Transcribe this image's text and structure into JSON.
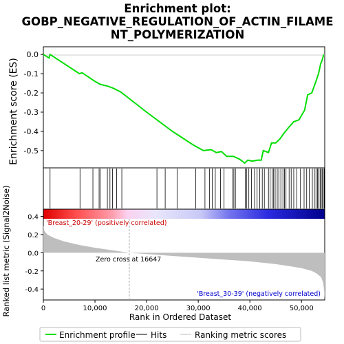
{
  "colors": {
    "profile": "#00dd00",
    "hits": "#000000",
    "metric": "#bebebe",
    "pos_label": "#cc0000",
    "neg_label": "#0000cc",
    "zero_line": "#cccccc"
  },
  "chart_data": [
    {
      "type": "line",
      "title": "Enrichment plot:\nGOBP_NEGATIVE_REGULATION_OF_ACTIN_FILAME\nNT_POLYMERIZATION",
      "ylabel": "Enrichment score (ES)",
      "xlim": [
        0,
        54500
      ],
      "ylim": [
        -0.59,
        0.04
      ],
      "yticks": [
        0.0,
        -0.1,
        -0.2,
        -0.3,
        -0.4,
        -0.5
      ],
      "ytick_labels": [
        "0.0",
        "-0.1",
        "-0.2",
        "-0.3",
        "-0.4",
        "-0.5"
      ],
      "series": [
        {
          "name": "Enrichment profile",
          "x": [
            0,
            1100,
            1300,
            7000,
            7500,
            10000,
            11000,
            12500,
            13500,
            15000,
            20000,
            25000,
            29000,
            31000,
            32500,
            33500,
            34500,
            35500,
            36800,
            38000,
            39000,
            39600,
            40500,
            41500,
            42200,
            42600,
            43600,
            44200,
            45000,
            45800,
            46600,
            47500,
            48500,
            49500,
            50600,
            51200,
            52000,
            52800,
            53300,
            53700,
            54000,
            54300
          ],
          "y": [
            0.0,
            -0.018,
            0.0,
            -0.1,
            -0.095,
            -0.14,
            -0.155,
            -0.165,
            -0.175,
            -0.195,
            -0.3,
            -0.4,
            -0.47,
            -0.5,
            -0.495,
            -0.51,
            -0.505,
            -0.53,
            -0.53,
            -0.545,
            -0.565,
            -0.55,
            -0.555,
            -0.55,
            -0.55,
            -0.5,
            -0.51,
            -0.46,
            -0.46,
            -0.44,
            -0.41,
            -0.38,
            -0.35,
            -0.34,
            -0.29,
            -0.21,
            -0.2,
            -0.14,
            -0.1,
            -0.05,
            -0.03,
            0.0
          ]
        }
      ]
    },
    {
      "type": "scatter",
      "name": "hits",
      "series": [
        {
          "name": "Hits",
          "x": [
            1300,
            7100,
            9600,
            10800,
            11000,
            12400,
            12900,
            13400,
            14200,
            15200,
            22000,
            23600,
            25900,
            29500,
            31300,
            32200,
            32700,
            33300,
            34300,
            35000,
            36700,
            36900,
            37200,
            39100,
            39400,
            39800,
            40300,
            40900,
            41400,
            41900,
            42400,
            42800,
            43600,
            43900,
            44300,
            44600,
            44900,
            45300,
            45600,
            46000,
            46400,
            46700,
            47000,
            47600,
            48000,
            48500,
            49100,
            49800,
            50500,
            51000,
            51500,
            52100,
            52500,
            52800,
            53100,
            53300,
            53600,
            53800,
            54000,
            54200,
            54400
          ]
        }
      ]
    },
    {
      "type": "area",
      "name": "ranked-list-metric",
      "ylabel": "Ranked list metric (Signal2Noise)",
      "xlabel": "Rank in Ordered Dataset",
      "xlim": [
        0,
        54500
      ],
      "ylim": [
        -0.52,
        0.48
      ],
      "xticks": [
        0,
        10000,
        20000,
        30000,
        40000,
        50000
      ],
      "xtick_labels": [
        "0",
        "10,000",
        "20,000",
        "30,000",
        "40,000",
        "50,000"
      ],
      "yticks": [
        0.4,
        0.2,
        0.0,
        -0.2,
        -0.4
      ],
      "ytick_labels": [
        "0.4",
        "0.2",
        "0.0",
        "-0.2",
        "-0.4"
      ],
      "series": [
        {
          "name": "Ranking metric scores",
          "x": [
            0,
            200,
            800,
            2000,
            4000,
            7000,
            10000,
            13000,
            16647,
            20000,
            25000,
            30000,
            35000,
            40000,
            45000,
            48000,
            50000,
            52000,
            53000,
            53800,
            54200,
            54400,
            54500
          ],
          "y": [
            0.3,
            0.24,
            0.2,
            0.165,
            0.125,
            0.085,
            0.055,
            0.03,
            0.0,
            -0.015,
            -0.035,
            -0.055,
            -0.075,
            -0.095,
            -0.125,
            -0.15,
            -0.17,
            -0.2,
            -0.23,
            -0.27,
            -0.33,
            -0.42,
            -0.52
          ]
        }
      ],
      "annotations": {
        "zero_cross_x": 16647,
        "zero_cross_text": "Zero cross at 16647",
        "positive_label": "'Breast_20-29' (positively correlated)",
        "negative_label": "'Breast_30-39' (negatively correlated)"
      }
    }
  ],
  "legend": {
    "placement": "bottom",
    "items": [
      {
        "label": "Enrichment profile",
        "color": "#00dd00"
      },
      {
        "label": "Hits",
        "color": "#000000"
      },
      {
        "label": "Ranking metric scores",
        "color": "#bebebe"
      }
    ]
  }
}
